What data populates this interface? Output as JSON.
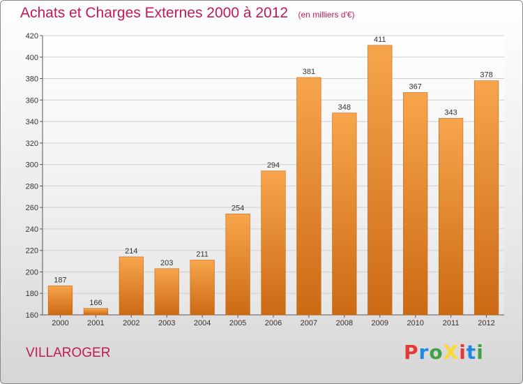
{
  "header": {
    "title": "Achats et Charges Externes 2000 à 2012",
    "unit": "(en milliers d'€)"
  },
  "commune": "VILLAROGER",
  "logo": {
    "text": "ProXiti",
    "colors": [
      "#e53935",
      "#1e88e5",
      "#43a047",
      "#fdd835",
      "#e53935",
      "#1e88e5",
      "#43a047"
    ]
  },
  "chart_data": {
    "type": "bar",
    "title": "Achats et Charges Externes 2000 à 2012",
    "subtitle": "(en milliers d'€)",
    "categories": [
      "2000",
      "2001",
      "2002",
      "2003",
      "2004",
      "2005",
      "2006",
      "2007",
      "2008",
      "2009",
      "2010",
      "2011",
      "2012"
    ],
    "values": [
      187,
      166,
      214,
      203,
      211,
      254,
      294,
      381,
      348,
      411,
      367,
      343,
      378
    ],
    "ylim": [
      160,
      420
    ],
    "yticks": [
      160,
      180,
      200,
      220,
      240,
      260,
      280,
      300,
      320,
      340,
      360,
      380,
      400,
      420
    ],
    "grid": true,
    "bar_color": "#f0922e"
  }
}
